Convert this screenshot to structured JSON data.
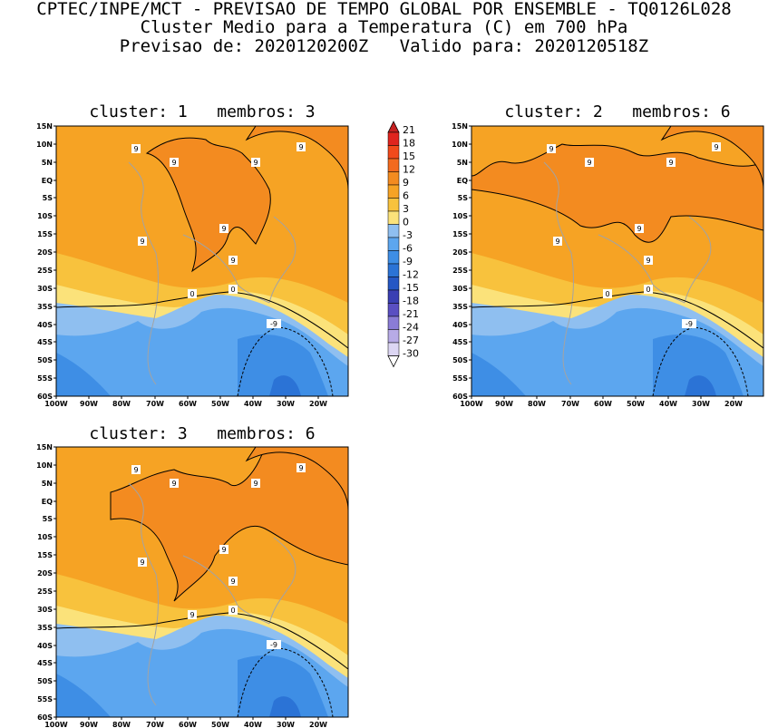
{
  "header": {
    "line1": "CPTEC/INPE/MCT - PREVISAO DE TEMPO GLOBAL POR ENSEMBLE - TQ0126L028",
    "line2": "Cluster Medio para a Temperatura (C) em 700 hPa",
    "line3": "Previsao de: 2020120200Z   Valido para: 2020120518Z"
  },
  "axes": {
    "lat_labels": [
      "15N",
      "10N",
      "5N",
      "EQ",
      "5S",
      "10S",
      "15S",
      "20S",
      "25S",
      "30S",
      "35S",
      "40S",
      "45S",
      "50S",
      "55S",
      "60S"
    ],
    "lon_labels": [
      "100W",
      "90W",
      "80W",
      "70W",
      "60W",
      "50W",
      "40W",
      "30W",
      "20W"
    ]
  },
  "colorbar": {
    "levels": [
      "21",
      "18",
      "15",
      "12",
      "9",
      "6",
      "3",
      "0",
      "-3",
      "-6",
      "-9",
      "-12",
      "-15",
      "-18",
      "-21",
      "-24",
      "-27",
      "-30"
    ],
    "colors": [
      "#c62121",
      "#e0241f",
      "#f24a1b",
      "#f36a1e",
      "#f38b20",
      "#f6a324",
      "#f8c23d",
      "#fbe27a",
      "#8fbff0",
      "#5ca6ef",
      "#3e8ee5",
      "#2b73d6",
      "#2557c4",
      "#3a3fb3",
      "#5a4fc2",
      "#8a7cd6",
      "#b7abe6",
      "#dcd6f3"
    ]
  },
  "panels": [
    {
      "title": "cluster: 1   membros: 3",
      "contour_labels": [
        "9",
        "9",
        "9",
        "9",
        "9",
        "9",
        "9",
        "0",
        "0",
        "-9"
      ]
    },
    {
      "title": "cluster: 2   membros: 6",
      "contour_labels": [
        "9",
        "9",
        "9",
        "9",
        "9",
        "9",
        "9",
        "0",
        "0",
        "-9"
      ]
    },
    {
      "title": "cluster: 3   membros: 6",
      "contour_labels": [
        "9",
        "9",
        "9",
        "9",
        "9",
        "9",
        "9",
        "9",
        "0",
        "-9"
      ]
    }
  ]
}
